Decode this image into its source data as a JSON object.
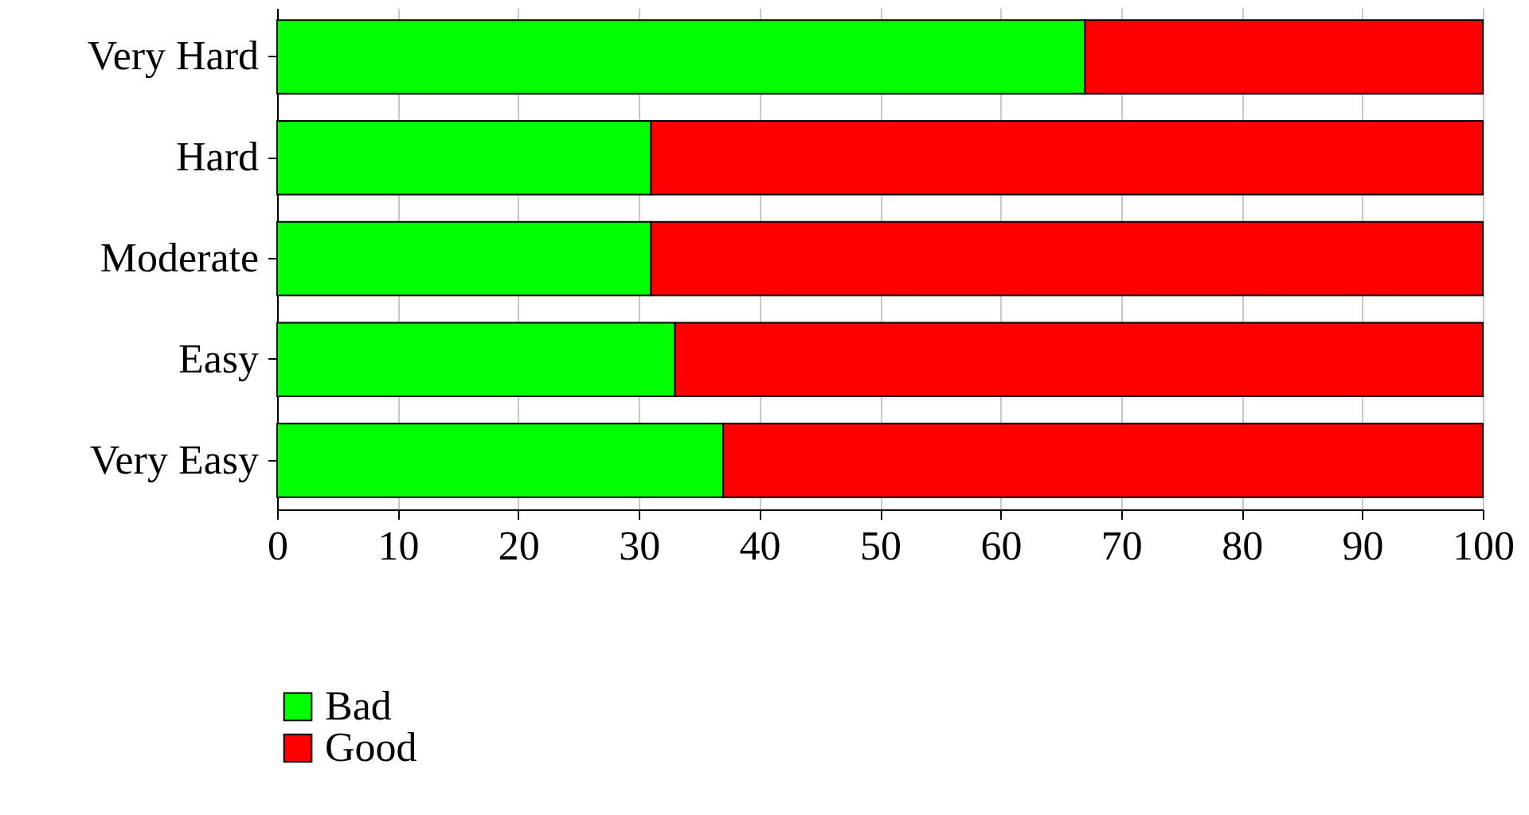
{
  "chart_data": {
    "type": "bar",
    "orientation": "horizontal",
    "stacked": true,
    "categories": [
      "Very Hard",
      "Hard",
      "Moderate",
      "Easy",
      "Very Easy"
    ],
    "series": [
      {
        "name": "Bad",
        "color": "#00ff00",
        "values": [
          67,
          31,
          31,
          33,
          37
        ]
      },
      {
        "name": "Good",
        "color": "#ff0000",
        "values": [
          33,
          69,
          69,
          67,
          63
        ]
      }
    ],
    "xlim": [
      0,
      100
    ],
    "xticks": [
      0,
      10,
      20,
      30,
      40,
      50,
      60,
      70,
      80,
      90,
      100
    ],
    "grid": "x",
    "legend": "bottom left"
  }
}
